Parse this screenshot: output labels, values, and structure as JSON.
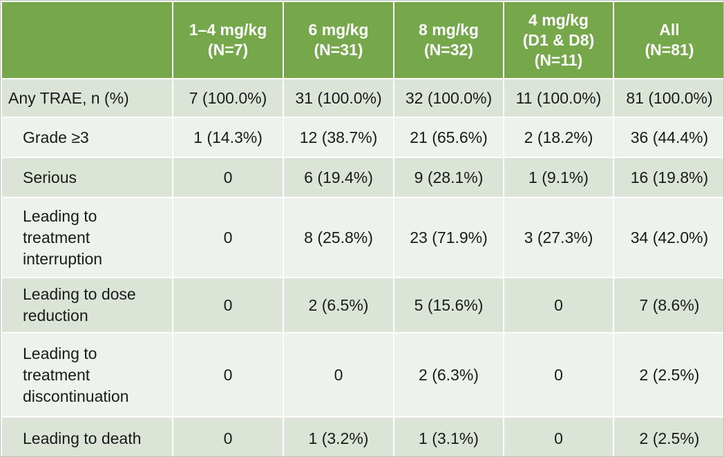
{
  "table": {
    "columns": [
      {
        "line1": "",
        "line2": "",
        "line3": ""
      },
      {
        "line1": "1–4 mg/kg",
        "line2": "(N=7)",
        "line3": ""
      },
      {
        "line1": "6 mg/kg",
        "line2": "(N=31)",
        "line3": ""
      },
      {
        "line1": "8 mg/kg",
        "line2": "(N=32)",
        "line3": ""
      },
      {
        "line1": "4 mg/kg",
        "line2": "(D1 & D8)",
        "line3": "(N=11)"
      },
      {
        "line1": "All",
        "line2": "(N=81)",
        "line3": ""
      }
    ],
    "rows": [
      {
        "label": [
          "Any TRAE, n (%)"
        ],
        "values": [
          "7 (100.0%)",
          "31 (100.0%)",
          "32 (100.0%)",
          "11 (100.0%)",
          "81 (100.0%)"
        ]
      },
      {
        "label": [
          "Grade ≥3"
        ],
        "values": [
          "1 (14.3%)",
          "12 (38.7%)",
          "21 (65.6%)",
          "2 (18.2%)",
          "36 (44.4%)"
        ]
      },
      {
        "label": [
          "Serious"
        ],
        "values": [
          "0",
          "6 (19.4%)",
          "9 (28.1%)",
          "1 (9.1%)",
          "16 (19.8%)"
        ]
      },
      {
        "label": [
          "Leading to",
          "treatment",
          "interruption"
        ],
        "values": [
          "0",
          "8 (25.8%)",
          "23 (71.9%)",
          "3 (27.3%)",
          "34 (42.0%)"
        ]
      },
      {
        "label": [
          "Leading to dose",
          "reduction"
        ],
        "values": [
          "0",
          "2 (6.5%)",
          "5 (15.6%)",
          "0",
          "7 (8.6%)"
        ]
      },
      {
        "label": [
          "Leading to",
          "treatment",
          "discontinuation"
        ],
        "values": [
          "0",
          "0",
          "2 (6.3%)",
          "0",
          "2 (2.5%)"
        ]
      },
      {
        "label": [
          "Leading to death"
        ],
        "values": [
          "0",
          "1 (3.2%)",
          "1 (3.1%)",
          "0",
          "2 (2.5%)"
        ]
      }
    ]
  },
  "colors": {
    "header_green": "#76a84b",
    "row_dark": "#dbe4d6",
    "row_light": "#eef2ec"
  }
}
